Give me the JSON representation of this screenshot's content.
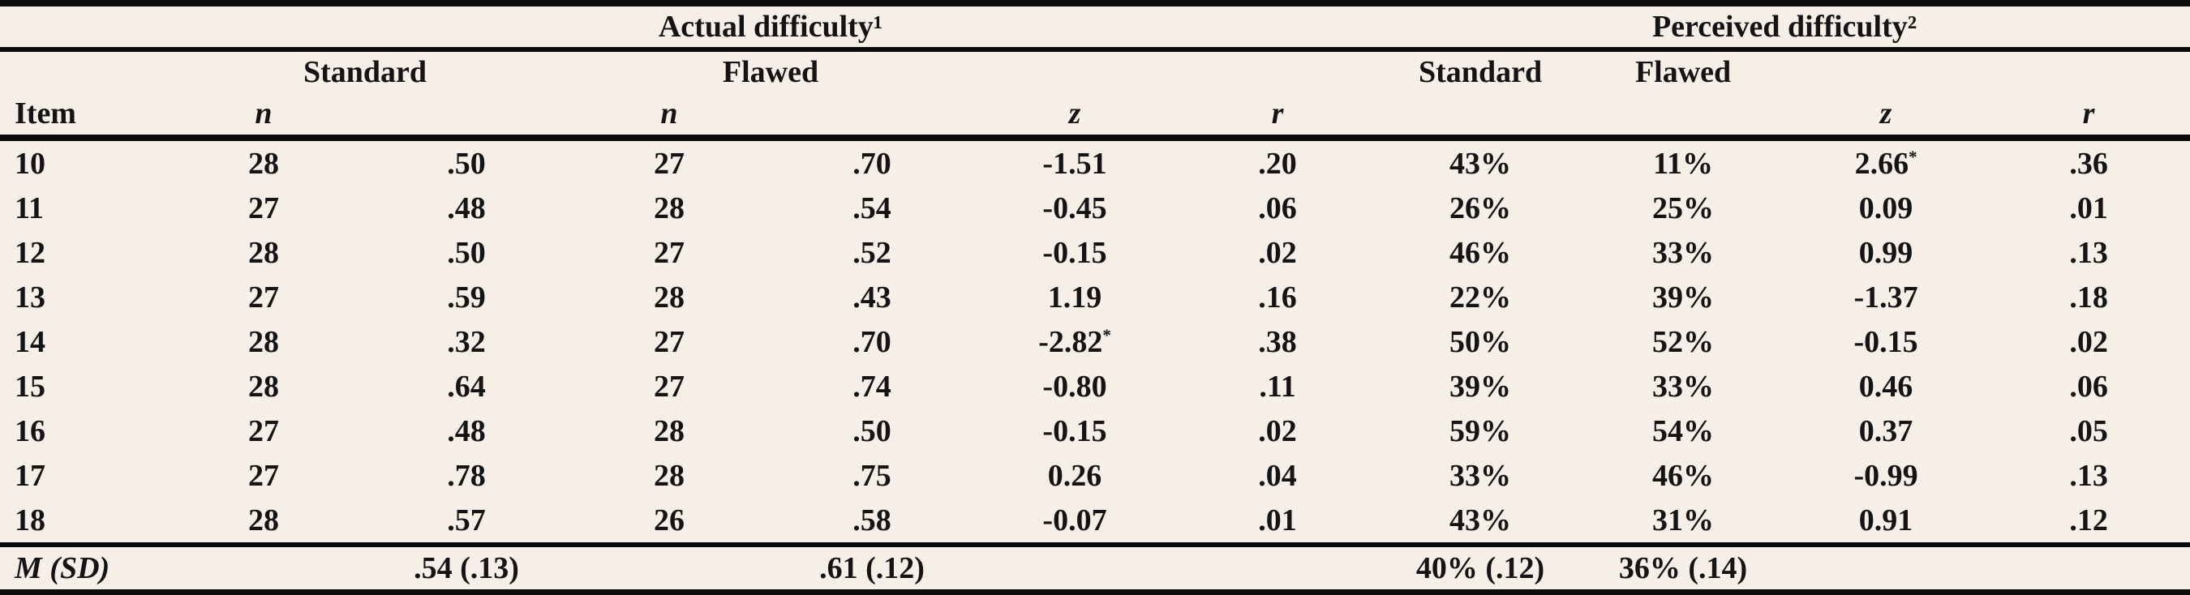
{
  "table": {
    "spanners": {
      "actual": "Actual difficulty¹",
      "perceived": "Perceived difficulty²"
    },
    "group_headers": {
      "standard_left": "Standard",
      "flawed_left": "Flawed",
      "standard_right": "Standard",
      "flawed_right": "Flawed"
    },
    "column_headers": {
      "item": "Item",
      "n_standard": "n",
      "n_flawed": "n",
      "z_actual": "z",
      "r_actual": "r",
      "z_perceived": "z",
      "r_perceived": "r"
    },
    "column_keys": [
      "item",
      "n_standard",
      "p_standard",
      "n_flawed",
      "p_flawed",
      "z_actual",
      "r_actual",
      "pct_standard",
      "pct_flawed",
      "z_perceived",
      "r_perceived"
    ],
    "rows": [
      [
        "10",
        "28",
        ".50",
        "27",
        ".70",
        "-1.51",
        ".20",
        "43%",
        "11%",
        "2.66*",
        ".36"
      ],
      [
        "11",
        "27",
        ".48",
        "28",
        ".54",
        "-0.45",
        ".06",
        "26%",
        "25%",
        "0.09",
        ".01"
      ],
      [
        "12",
        "28",
        ".50",
        "27",
        ".52",
        "-0.15",
        ".02",
        "46%",
        "33%",
        "0.99",
        ".13"
      ],
      [
        "13",
        "27",
        ".59",
        "28",
        ".43",
        "1.19",
        ".16",
        "22%",
        "39%",
        "-1.37",
        ".18"
      ],
      [
        "14",
        "28",
        ".32",
        "27",
        ".70",
        "-2.82*",
        ".38",
        "50%",
        "52%",
        "-0.15",
        ".02"
      ],
      [
        "15",
        "28",
        ".64",
        "27",
        ".74",
        "-0.80",
        ".11",
        "39%",
        "33%",
        "0.46",
        ".06"
      ],
      [
        "16",
        "27",
        ".48",
        "28",
        ".50",
        "-0.15",
        ".02",
        "59%",
        "54%",
        "0.37",
        ".05"
      ],
      [
        "17",
        "27",
        ".78",
        "28",
        ".75",
        "0.26",
        ".04",
        "33%",
        "46%",
        "-0.99",
        ".13"
      ],
      [
        "18",
        "28",
        ".57",
        "26",
        ".58",
        "-0.07",
        ".01",
        "43%",
        "31%",
        "0.91",
        ".12"
      ]
    ],
    "summary": {
      "label": "M (SD)",
      "p_standard": ".54 (.13)",
      "p_flawed": ".61 (.12)",
      "pct_standard": "40% (.12)",
      "pct_flawed": "36% (.14)"
    }
  }
}
